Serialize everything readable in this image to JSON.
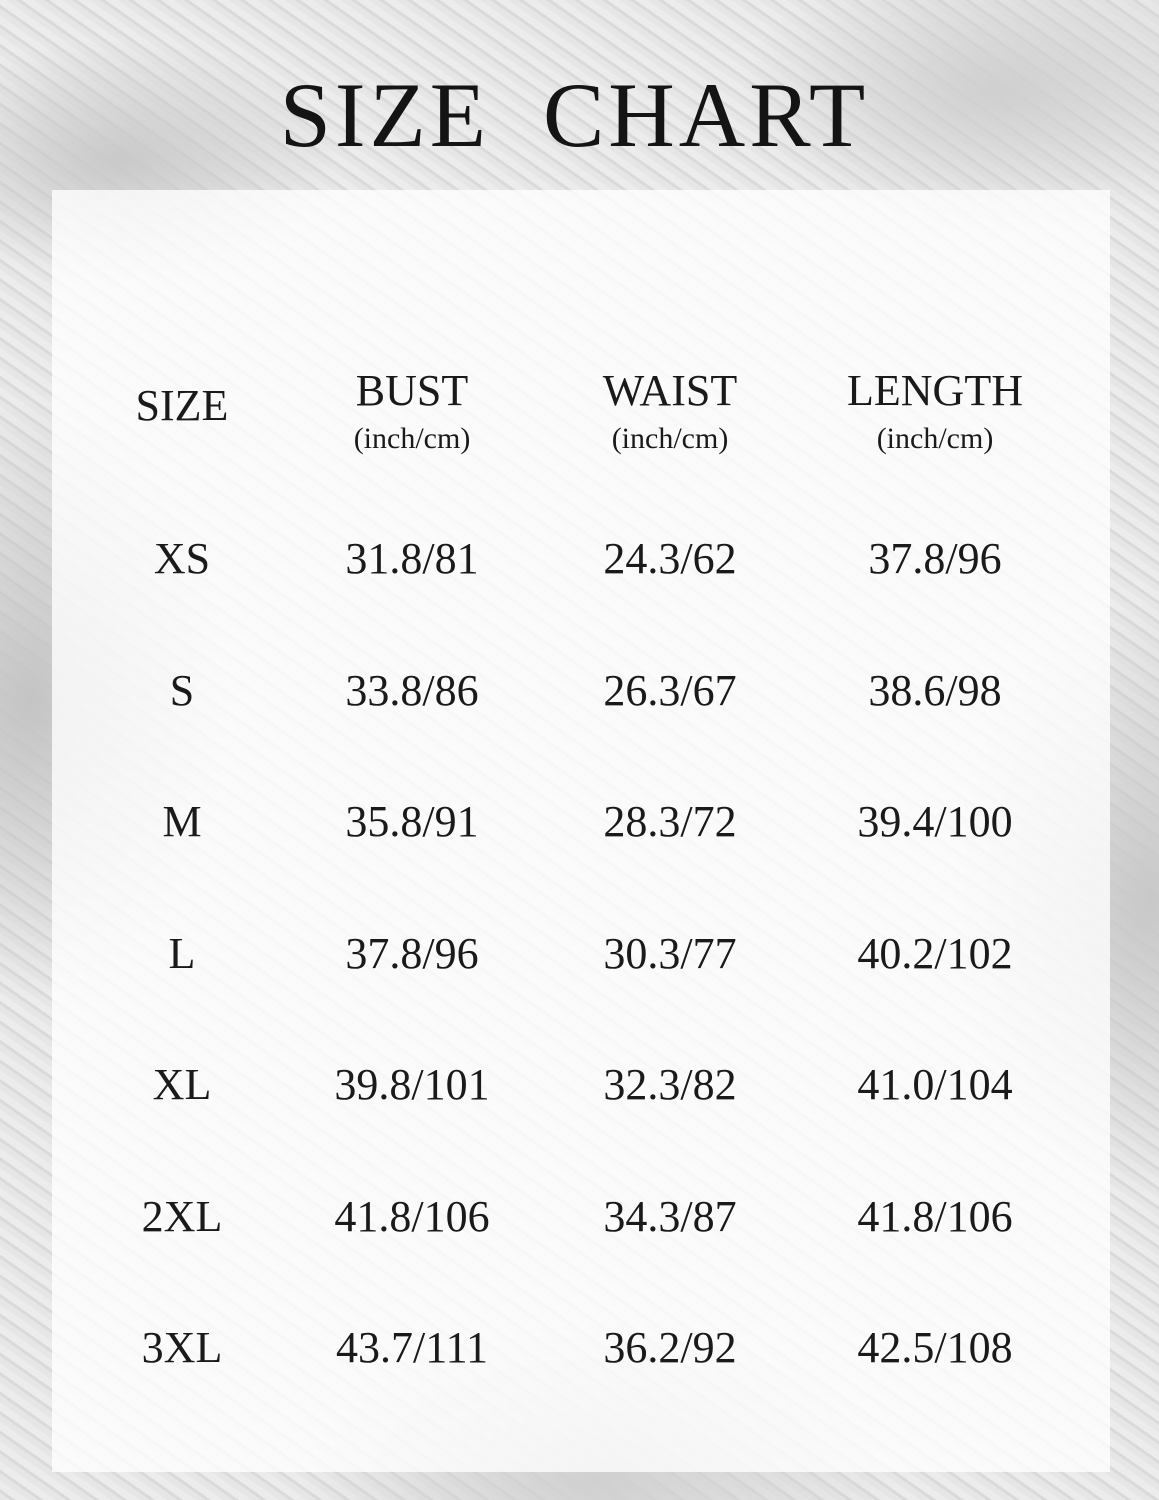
{
  "title": "SIZE CHART",
  "columns": [
    {
      "label": "SIZE",
      "unit": ""
    },
    {
      "label": "BUST",
      "unit": "(inch/cm)"
    },
    {
      "label": "WAIST",
      "unit": "(inch/cm)"
    },
    {
      "label": "LENGTH",
      "unit": "(inch/cm)"
    }
  ],
  "rows": [
    [
      "XS",
      "31.8/81",
      "24.3/62",
      "37.8/96"
    ],
    [
      "S",
      "33.8/86",
      "26.3/67",
      "38.6/98"
    ],
    [
      "M",
      "35.8/91",
      "28.3/72",
      "39.4/100"
    ],
    [
      "L",
      "37.8/96",
      "30.3/77",
      "40.2/102"
    ],
    [
      "XL",
      "39.8/101",
      "32.3/82",
      "41.0/104"
    ],
    [
      "2XL",
      "41.8/106",
      "34.3/87",
      "41.8/106"
    ],
    [
      "3XL",
      "43.7/111",
      "36.2/92",
      "42.5/108"
    ]
  ]
}
